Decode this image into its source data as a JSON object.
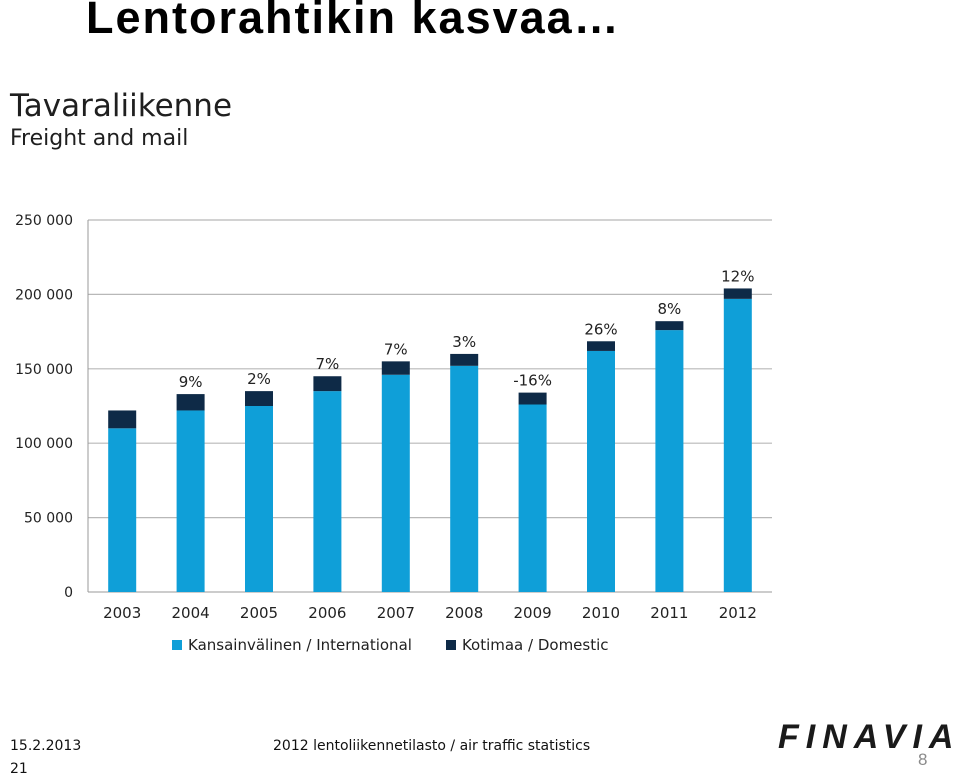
{
  "slide": {
    "title": "Lentorahtikin kasvaa…",
    "heading_fi": "Tavaraliikenne",
    "heading_en": "Freight and mail"
  },
  "chart_data": {
    "type": "bar",
    "stacked": true,
    "categories": [
      "2003",
      "2004",
      "2005",
      "2006",
      "2007",
      "2008",
      "2009",
      "2010",
      "2011",
      "2012"
    ],
    "series": [
      {
        "name": "Kansainvälinen / International",
        "color": "#0f9fd8",
        "values": [
          110000,
          122000,
          125000,
          135000,
          146000,
          152000,
          126000,
          162000,
          176000,
          197000
        ]
      },
      {
        "name": "Kotimaa / Domestic",
        "color": "#0e2a47",
        "values": [
          12000,
          11000,
          10000,
          10000,
          9000,
          8000,
          8000,
          6500,
          6000,
          7000
        ]
      }
    ],
    "growth_labels": [
      "",
      "9%",
      "2%",
      "7%",
      "7%",
      "3%",
      "-16%",
      "26%",
      "8%",
      "12%"
    ],
    "yticks": [
      "0",
      "50 000",
      "100 000",
      "150 000",
      "200 000",
      "250 000"
    ],
    "ylim": [
      0,
      250000
    ],
    "grid": true
  },
  "footer": {
    "date": "15.2.2013",
    "page_small": "21",
    "source": "2012 lentoliikennetilasto / air traffic statistics",
    "logo": "FINAVIA",
    "page_number": "8"
  }
}
